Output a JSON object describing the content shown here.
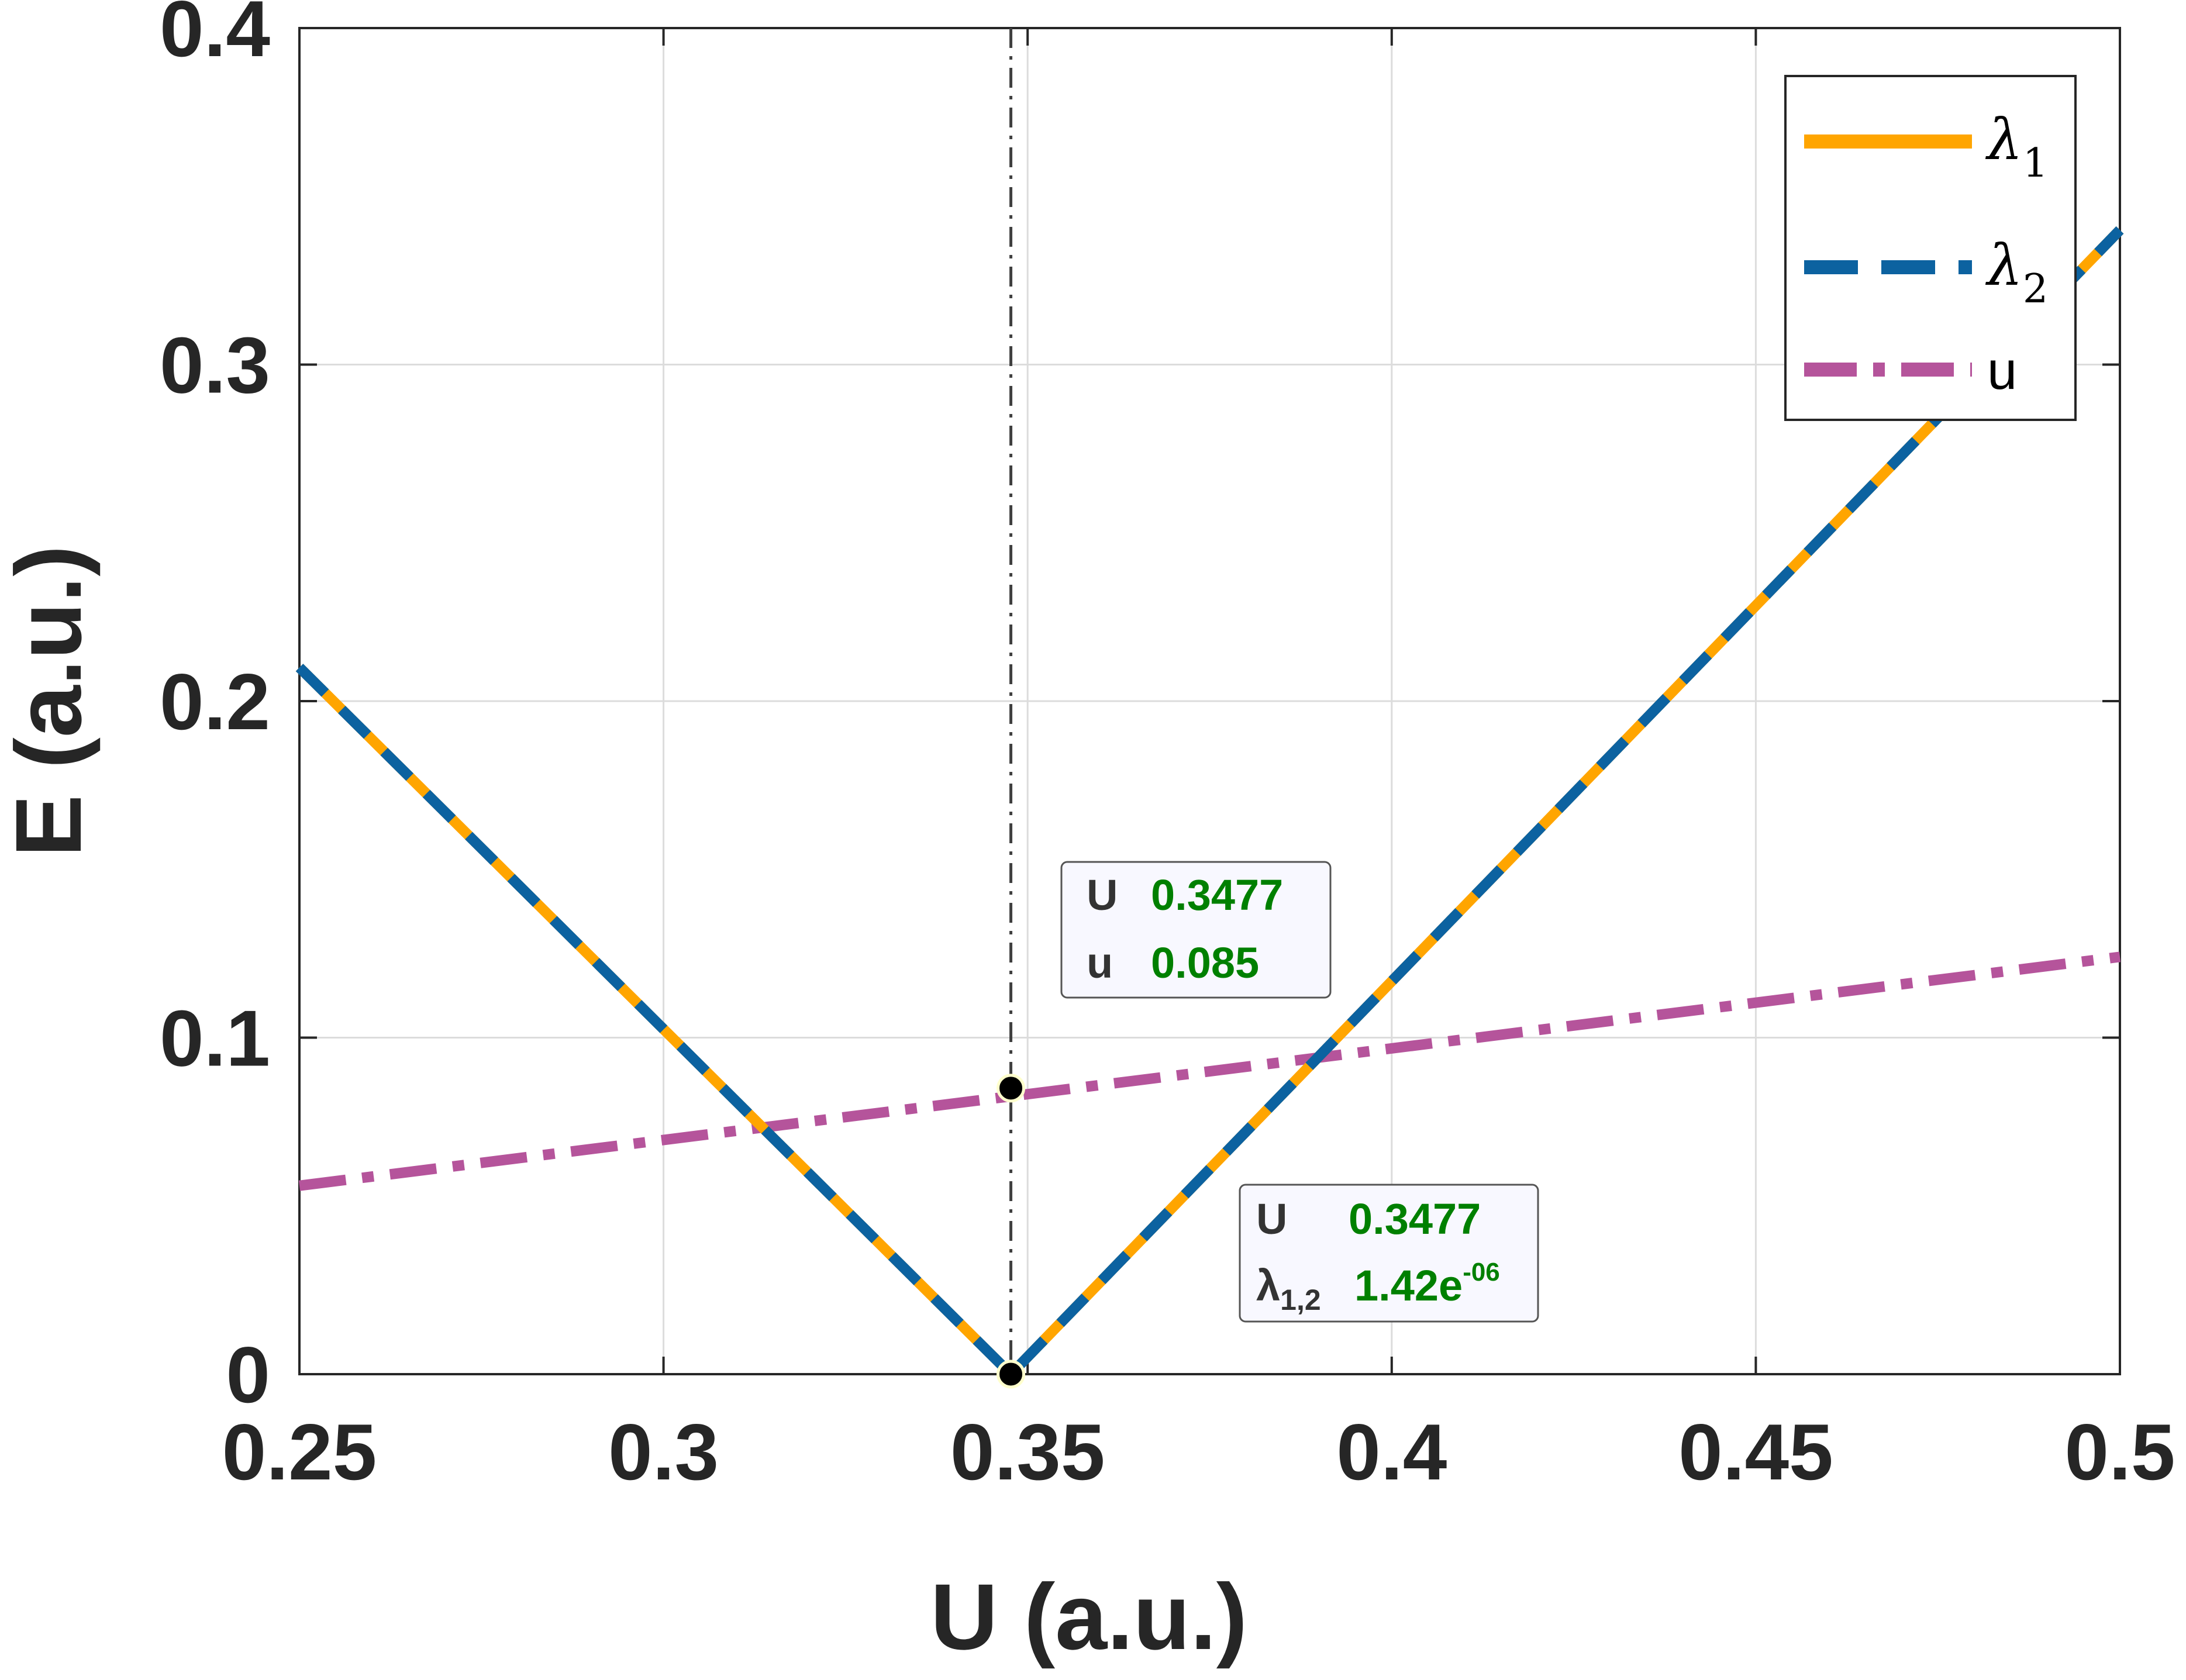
{
  "chart_data": {
    "type": "line",
    "xlabel": "U (a.u.)",
    "ylabel": "E (a.u.)",
    "xlim": [
      0.25,
      0.5
    ],
    "ylim": [
      0,
      0.4
    ],
    "xticks": [
      "0.25",
      "0.3",
      "0.35",
      "0.4",
      "0.45",
      "0.5"
    ],
    "yticks": [
      "0",
      "0.1",
      "0.2",
      "0.3",
      "0.4"
    ],
    "grid": true,
    "legend_position": "top-right",
    "series": [
      {
        "name": "λ1",
        "label_main": "λ",
        "label_sub": "1",
        "color": "#FFA500",
        "style": "solid",
        "x": [
          0.25,
          0.3477,
          0.5
        ],
        "y": [
          0.21,
          0.0,
          0.34
        ]
      },
      {
        "name": "λ2",
        "label_main": "λ",
        "label_sub": "2",
        "color": "#0C62A0",
        "style": "dashed",
        "x": [
          0.25,
          0.3477,
          0.5
        ],
        "y": [
          0.21,
          0.0,
          0.34
        ]
      },
      {
        "name": "u",
        "label_main": "u",
        "label_sub": "",
        "color": "#B5549B",
        "style": "dashdot",
        "x": [
          0.25,
          0.5
        ],
        "y": [
          0.056,
          0.124
        ]
      }
    ],
    "vline": {
      "x": 0.3477,
      "color": "#404040",
      "style": "dashdot"
    },
    "markers": [
      {
        "x": 0.3477,
        "y": 0.085
      },
      {
        "x": 0.3477,
        "y": 0.0
      }
    ],
    "datatips": [
      {
        "label1": "U",
        "value1": "0.3477",
        "label2": "u",
        "label2_sub": "",
        "value2": "0.085",
        "value2_sup": ""
      },
      {
        "label1": "U",
        "value1": "0.3477",
        "label2": "λ",
        "label2_sub": "1,2",
        "value2": "1.42e",
        "value2_sup": "-06"
      }
    ]
  }
}
